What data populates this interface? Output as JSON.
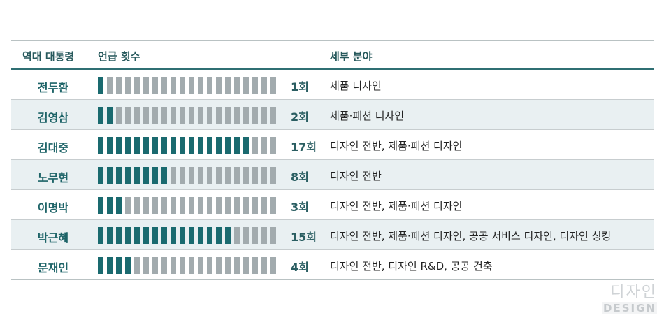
{
  "header": {
    "col_president": "역대 대통령",
    "col_mentions": "언급 횟수",
    "col_fields": "세부 분야"
  },
  "total_segments": 20,
  "colors": {
    "filled": "#1a6a6f",
    "empty": "#a2abae",
    "header_line": "#2f6f73",
    "alt_row": "#e9f0f2"
  },
  "rows": [
    {
      "name": "전두환",
      "count": 1,
      "count_label": "1회",
      "fields": "제품 디자인"
    },
    {
      "name": "김영삼",
      "count": 2,
      "count_label": "2회",
      "fields": "제품·패션 디자인"
    },
    {
      "name": "김대중",
      "count": 17,
      "count_label": "17회",
      "fields": "디자인 전반, 제품·패션 디자인"
    },
    {
      "name": "노무현",
      "count": 8,
      "count_label": "8회",
      "fields": "디자인 전반"
    },
    {
      "name": "이명박",
      "count": 3,
      "count_label": "3회",
      "fields": "디자인 전반, 제품·패션 디자인"
    },
    {
      "name": "박근혜",
      "count": 15,
      "count_label": "15회",
      "fields": "디자인 전반, 제품·패션 디자인, 공공 서비스 디자인, 디자인 싱킹"
    },
    {
      "name": "문재인",
      "count": 4,
      "count_label": "4회",
      "fields": "디자인 전반, 디자인 R&D, 공공 건축"
    }
  ],
  "watermark": {
    "line1": "디자인",
    "line2": "DESIGN"
  }
}
